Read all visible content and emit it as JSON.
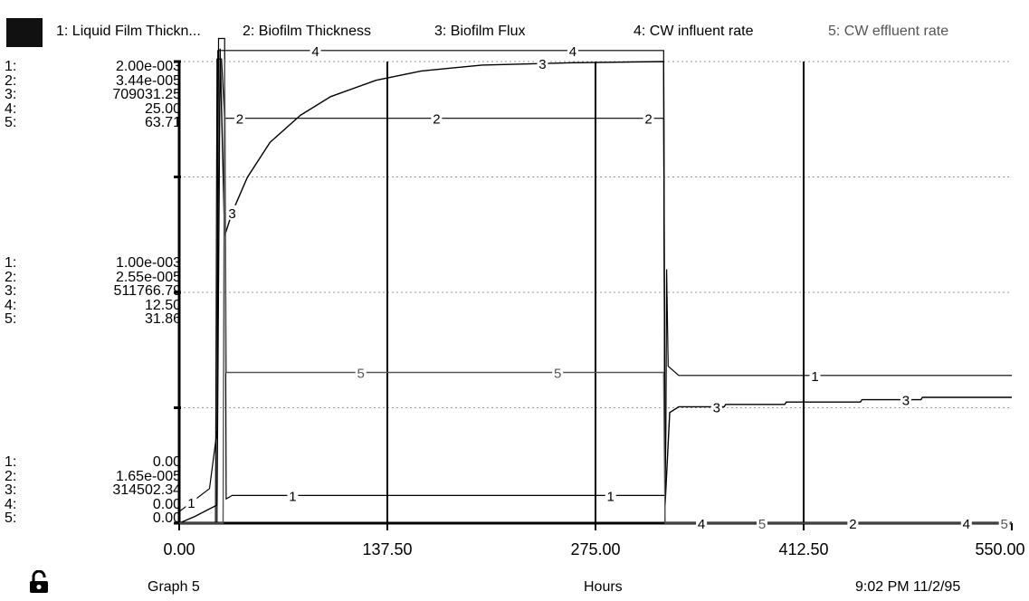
{
  "legend": {
    "items": [
      {
        "label": "1: Liquid Film Thickn...",
        "color": "#000000"
      },
      {
        "label": "2: Biofilm Thickness",
        "color": "#000000"
      },
      {
        "label": "3: Biofilm Flux",
        "color": "#000000"
      },
      {
        "label": "4: CW influent rate",
        "color": "#000000"
      },
      {
        "label": "5: CW effluent rate",
        "color": "#555555"
      }
    ]
  },
  "scales": {
    "top": {
      "idx": [
        "1:",
        "2:",
        "3:",
        "4:",
        "5:"
      ],
      "vals": [
        "2.00e-003",
        "3.44e-005",
        "709031.25",
        "25.00",
        "63.71"
      ]
    },
    "middle": {
      "idx": [
        "1:",
        "2:",
        "3:",
        "4:",
        "5:"
      ],
      "vals": [
        "1.00e-003",
        "2.55e-005",
        "511766.79",
        "12.50",
        "31.86"
      ]
    },
    "bottom": {
      "idx": [
        "1:",
        "2:",
        "3:",
        "4:",
        "5:"
      ],
      "vals": [
        "0.00",
        "1.65e-005",
        "314502.34",
        "0.00",
        "0.00"
      ]
    }
  },
  "footer": {
    "graph": "Graph 5",
    "xlabel": "Hours",
    "timestamp": "9:02 PM   11/2/95",
    "lock_icon": "unlocked-padlock-icon"
  },
  "chart_data": {
    "type": "line",
    "title": "",
    "xlabel": "Hours",
    "xlim": [
      0,
      550
    ],
    "x_ticks": [
      "0.00",
      "137.50",
      "275.00",
      "412.50",
      "550.00"
    ],
    "grid": true,
    "legend_placement": "top",
    "series": [
      {
        "name": "1: Liquid Film Thickn...",
        "ylim": [
          0,
          0.002
        ],
        "points": [
          [
            0,
            5e-05
          ],
          [
            20,
            0.00015
          ],
          [
            25,
            0.0004
          ],
          [
            26,
            0.0021
          ],
          [
            30,
            0.0021
          ],
          [
            31,
            0.000105
          ],
          [
            35,
            0.00012
          ],
          [
            100,
            0.00012
          ],
          [
            320,
            0.00012
          ],
          [
            321,
            0.00012
          ],
          [
            321.5,
            0.0004
          ],
          [
            322,
            0.0011
          ],
          [
            323,
            0.00068
          ],
          [
            330,
            0.00064
          ],
          [
            550,
            0.00064
          ]
        ]
      },
      {
        "name": "2: Biofilm Thickness",
        "ylim": [
          1.65e-05,
          3.44e-05
        ],
        "points": [
          [
            0,
            1.65e-05
          ],
          [
            24,
            1.65e-05
          ],
          [
            25,
            3.45e-05
          ],
          [
            28,
            3.45e-05
          ],
          [
            30,
            3.22e-05
          ],
          [
            320,
            3.22e-05
          ],
          [
            321,
            1.65e-05
          ],
          [
            550,
            1.65e-05
          ]
        ]
      },
      {
        "name": "3: Biofilm Flux",
        "ylim": [
          314502.34,
          709031.25
        ],
        "points": [
          [
            0,
            314502
          ],
          [
            10,
            320000
          ],
          [
            25,
            330000
          ],
          [
            27,
            720000
          ],
          [
            30,
            560000
          ],
          [
            35,
            580000
          ],
          [
            45,
            610000
          ],
          [
            60,
            640000
          ],
          [
            80,
            663000
          ],
          [
            100,
            679000
          ],
          [
            130,
            693000
          ],
          [
            160,
            701000
          ],
          [
            200,
            706000
          ],
          [
            260,
            708000
          ],
          [
            320,
            709000
          ],
          [
            321,
            330000
          ],
          [
            324,
            409000
          ],
          [
            330,
            414000
          ],
          [
            360,
            414000
          ],
          [
            361,
            416000
          ],
          [
            400,
            416000
          ],
          [
            401,
            418000
          ],
          [
            450,
            418000
          ],
          [
            451,
            420000
          ],
          [
            490,
            420000
          ],
          [
            491,
            422000
          ],
          [
            550,
            422000
          ]
        ]
      },
      {
        "name": "4: CW influent rate",
        "ylim": [
          0,
          25
        ],
        "points": [
          [
            0,
            0
          ],
          [
            25,
            0
          ],
          [
            25.5,
            25.6
          ],
          [
            320,
            25.6
          ],
          [
            321,
            0
          ],
          [
            550,
            0
          ]
        ]
      },
      {
        "name": "5: CW effluent rate",
        "ylim": [
          0,
          63.71
        ],
        "points": [
          [
            0,
            0
          ],
          [
            29,
            0
          ],
          [
            30,
            64
          ],
          [
            31,
            20.8
          ],
          [
            320,
            20.8
          ],
          [
            321,
            0
          ],
          [
            550,
            0
          ]
        ]
      }
    ],
    "point_labels": [
      {
        "series": 1,
        "x": 8,
        "text": "1"
      },
      {
        "series": 1,
        "x": 75,
        "text": "1"
      },
      {
        "series": 1,
        "x": 285,
        "text": "1"
      },
      {
        "series": 1,
        "x": 420,
        "text": "1"
      },
      {
        "series": 2,
        "x": 40,
        "text": "2"
      },
      {
        "series": 2,
        "x": 170,
        "text": "2"
      },
      {
        "series": 2,
        "x": 310,
        "text": "2"
      },
      {
        "series": 2,
        "x": 445,
        "text": "2"
      },
      {
        "series": 3,
        "x": 35,
        "text": "3"
      },
      {
        "series": 3,
        "x": 355,
        "text": "3"
      },
      {
        "series": 3,
        "x": 240,
        "text": "3"
      },
      {
        "series": 3,
        "x": 480,
        "text": "3"
      },
      {
        "series": 4,
        "x": 90,
        "text": "4"
      },
      {
        "series": 4,
        "x": 260,
        "text": "4"
      },
      {
        "series": 4,
        "x": 345,
        "text": "4"
      },
      {
        "series": 4,
        "x": 520,
        "text": "4"
      },
      {
        "series": 5,
        "x": 120,
        "text": "5"
      },
      {
        "series": 5,
        "x": 250,
        "text": "5"
      },
      {
        "series": 5,
        "x": 385,
        "text": "5"
      },
      {
        "series": 5,
        "x": 545,
        "text": "5"
      }
    ]
  }
}
